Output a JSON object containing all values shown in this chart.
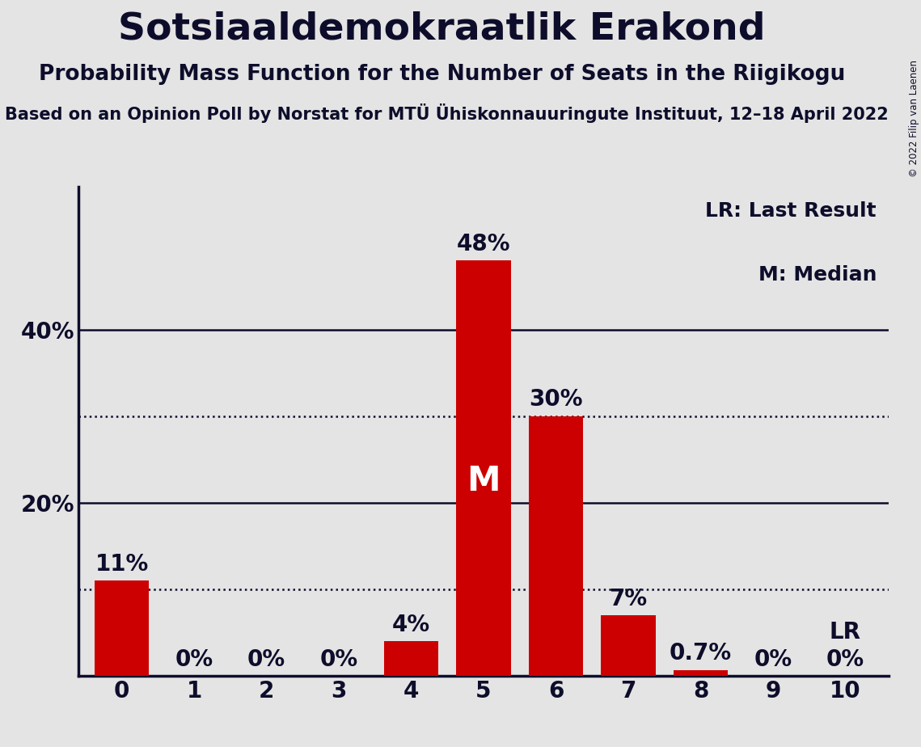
{
  "title": "Sotsiaaldemokraatlik Erakond",
  "subtitle": "Probability Mass Function for the Number of Seats in the Riigikogu",
  "source": "Based on an Opinion Poll by Norstat for MTÜ Ühiskonnauuringute Instituut, 12–18 April 2022",
  "copyright": "© 2022 Filip van Laenen",
  "categories": [
    0,
    1,
    2,
    3,
    4,
    5,
    6,
    7,
    8,
    9,
    10
  ],
  "values": [
    0.11,
    0.0,
    0.0,
    0.0,
    0.04,
    0.48,
    0.3,
    0.07,
    0.007,
    0.0,
    0.0
  ],
  "labels": [
    "11%",
    "0%",
    "0%",
    "0%",
    "4%",
    "48%",
    "30%",
    "7%",
    "0.7%",
    "0%",
    "0%"
  ],
  "bar_color": "#cc0000",
  "background_color": "#e4e4e4",
  "ylim": [
    0,
    0.565
  ],
  "median_seat": 5,
  "lr_seat": 10,
  "dotted_lines": [
    0.1,
    0.3
  ],
  "solid_lines": [
    0.2,
    0.4
  ],
  "legend_lr": "LR: Last Result",
  "legend_m": "M: Median",
  "title_fontsize": 34,
  "subtitle_fontsize": 19,
  "source_fontsize": 15,
  "label_fontsize": 20,
  "tick_fontsize": 20,
  "ytick_fontsize": 20,
  "legend_fontsize": 18,
  "bar_width": 0.75
}
